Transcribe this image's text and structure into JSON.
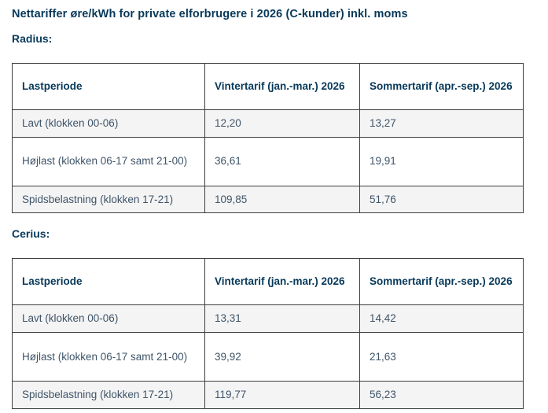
{
  "page": {
    "title": "Nettariffer øre/kWh for private elforbrugere i 2026 (C-kunder) inkl. moms"
  },
  "colors": {
    "heading_navy": "#07395a",
    "body_text": "#3f5469",
    "alt_row_bg": "#f4f4f4",
    "table_border": "#3d3d3d",
    "page_bg": "#ffffff"
  },
  "sections": [
    {
      "label": "Radius:",
      "table": {
        "headers": [
          "Lastperiode",
          "Vintertarif (jan.-mar.) 2026",
          "Sommertarif (apr.-sep.) 2026"
        ],
        "rows": [
          [
            "Lavt (klokken 00-06)",
            "12,20",
            "13,27"
          ],
          [
            "Højlast (klokken 06-17 samt 21-00)",
            "36,61",
            "19,91"
          ],
          [
            "Spidsbelastning (klokken 17-21)",
            "109,85",
            "51,76"
          ]
        ]
      }
    },
    {
      "label": "Cerius:",
      "table": {
        "headers": [
          "Lastperiode",
          "Vintertarif (jan.-mar.) 2026",
          "Sommertarif (apr.-sep.) 2026"
        ],
        "rows": [
          [
            "Lavt (klokken 00-06)",
            "13,31",
            "14,42"
          ],
          [
            "Højlast (klokken 06-17 samt 21-00)",
            "39,92",
            "21,63"
          ],
          [
            "Spidsbelastning (klokken 17-21)",
            "119,77",
            "56,23"
          ]
        ]
      }
    }
  ]
}
